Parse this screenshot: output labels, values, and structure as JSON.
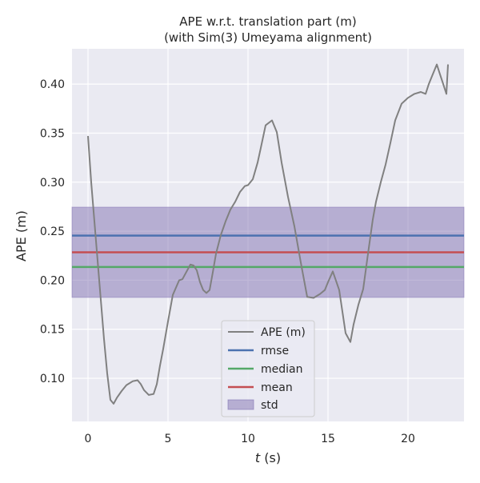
{
  "chart_data": {
    "type": "line",
    "title": "APE w.r.t. translation part (m)",
    "subtitle": "(with Sim(3) Umeyama alignment)",
    "xlabel_italic": "t",
    "xlabel_unit": " (s)",
    "ylabel": "APE (m)",
    "xlim": [
      -1.0,
      23.5
    ],
    "ylim": [
      0.056,
      0.436
    ],
    "xticks": [
      0,
      5,
      10,
      15,
      20
    ],
    "xtick_labels": [
      "0",
      "5",
      "10",
      "15",
      "20"
    ],
    "yticks": [
      0.1,
      0.15,
      0.2,
      0.25,
      0.3,
      0.35,
      0.4
    ],
    "ytick_labels": [
      "0.10",
      "0.15",
      "0.20",
      "0.25",
      "0.30",
      "0.35",
      "0.40"
    ],
    "grid": true,
    "legend_position": "lower center",
    "series": [
      {
        "name": "APE (m)",
        "color": "#808080",
        "x": [
          0.0,
          0.2,
          0.4,
          0.6,
          0.8,
          1.0,
          1.2,
          1.4,
          1.6,
          1.8,
          2.1,
          2.4,
          2.8,
          3.1,
          3.3,
          3.5,
          3.8,
          4.1,
          4.3,
          4.5,
          4.7,
          5.0,
          5.3,
          5.7,
          5.9,
          6.2,
          6.4,
          6.6,
          6.8,
          7.0,
          7.2,
          7.4,
          7.6,
          7.8,
          8.0,
          8.3,
          8.6,
          8.9,
          9.2,
          9.5,
          9.8,
          10.0,
          10.3,
          10.6,
          10.8,
          11.1,
          11.5,
          11.8,
          12.1,
          12.5,
          12.9,
          13.3,
          13.7,
          14.1,
          14.5,
          14.8,
          15.0,
          15.3,
          15.7,
          16.1,
          16.4,
          16.6,
          16.9,
          17.2,
          17.5,
          17.8,
          18.0,
          18.3,
          18.6,
          18.9,
          19.2,
          19.6,
          20.0,
          20.4,
          20.8,
          21.1,
          21.3,
          21.5,
          21.8,
          22.0,
          22.2,
          22.4,
          22.5
        ],
        "y": [
          0.347,
          0.3,
          0.26,
          0.22,
          0.18,
          0.14,
          0.105,
          0.078,
          0.074,
          0.08,
          0.087,
          0.093,
          0.097,
          0.098,
          0.094,
          0.088,
          0.083,
          0.084,
          0.094,
          0.113,
          0.13,
          0.158,
          0.185,
          0.2,
          0.201,
          0.21,
          0.216,
          0.215,
          0.21,
          0.198,
          0.19,
          0.187,
          0.19,
          0.208,
          0.227,
          0.246,
          0.26,
          0.272,
          0.28,
          0.29,
          0.296,
          0.297,
          0.303,
          0.32,
          0.335,
          0.358,
          0.363,
          0.351,
          0.32,
          0.285,
          0.255,
          0.218,
          0.183,
          0.182,
          0.186,
          0.19,
          0.198,
          0.209,
          0.19,
          0.146,
          0.137,
          0.155,
          0.175,
          0.191,
          0.227,
          0.262,
          0.28,
          0.3,
          0.318,
          0.34,
          0.363,
          0.38,
          0.386,
          0.39,
          0.392,
          0.39,
          0.4,
          0.408,
          0.42,
          0.41,
          0.4,
          0.39,
          0.42
        ]
      }
    ],
    "stats": {
      "rmse": {
        "name": "rmse",
        "value": 0.2455,
        "color": "#4c72b0"
      },
      "median": {
        "name": "median",
        "value": 0.2135,
        "color": "#55a868"
      },
      "mean": {
        "name": "mean",
        "value": 0.2285,
        "color": "#c44e52"
      },
      "std": {
        "name": "std",
        "low": 0.1825,
        "high": 0.2745,
        "color": "#8172b2"
      }
    },
    "legend": [
      "APE (m)",
      "rmse",
      "median",
      "mean",
      "std"
    ]
  }
}
